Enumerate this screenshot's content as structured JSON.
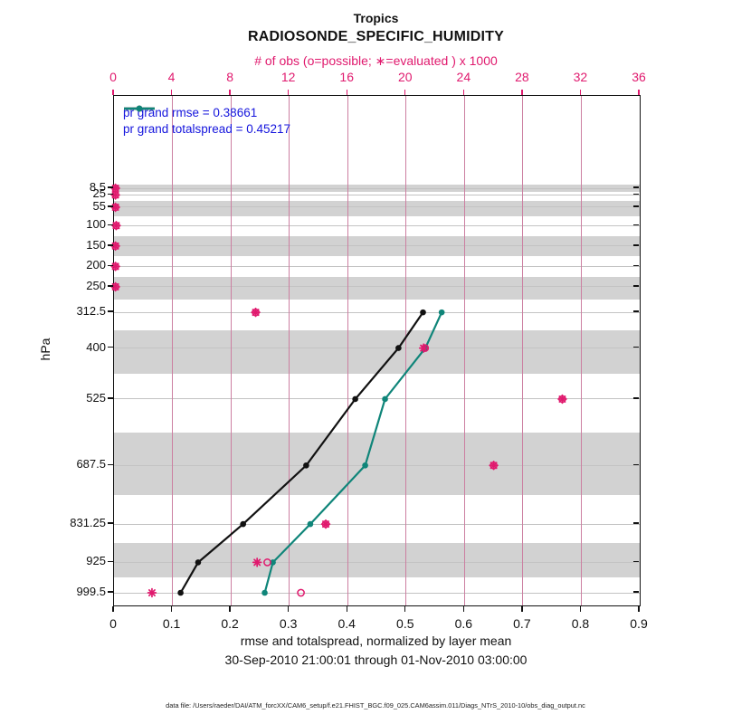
{
  "header": {
    "title": "Tropics",
    "subtitle": "RADIOSONDE_SPECIFIC_HUMIDITY",
    "obs_axis_label": "# of obs (o=possible; ∗=evaluated ) x 1000"
  },
  "footer": {
    "xlabel": "rmse and totalspread, normalized by layer mean",
    "date_range": "30-Sep-2010 21:00:01 through 01-Nov-2010 03:00:00",
    "data_file": "data file: /Users/raeder/DAI/ATM_forcXX/CAM6_setup/f.e21.FHIST_BGC.f09_025.CAM6assim.011/Diags_NTrS_2010-10/obs_diag_output.nc"
  },
  "colors": {
    "accent_pink": "#E01A6E",
    "v_grid_pink": "#CC7FA1",
    "h_grid_gray": "#C3C3C3",
    "band_gray": "#D2D2D2",
    "series_black": "#111111",
    "series_teal": "#0F8579",
    "legend_text_blue": "#1515DD"
  },
  "chart_data": {
    "type": "line",
    "orientation": "vertical-profile",
    "title": "Tropics",
    "subtitle": "RADIOSONDE_SPECIFIC_HUMIDITY",
    "ylabel": "hPa",
    "grid": true,
    "legend_position": "top-left",
    "y_axis": {
      "scale": "linear-pressure",
      "levels_hpa": [
        8.5,
        25,
        55,
        100,
        150,
        200,
        250,
        312.5,
        400,
        525,
        687.5,
        831.25,
        925,
        999.5
      ]
    },
    "x_axis": {
      "label": "rmse and totalspread, normalized by layer mean",
      "min": 0,
      "max": 0.9,
      "ticks": [
        0,
        0.1,
        0.2,
        0.3,
        0.4,
        0.5,
        0.6,
        0.7,
        0.8,
        0.9
      ]
    },
    "top_axis": {
      "label": "# of obs (o=possible; ∗=evaluated ) x 1000",
      "min": 0,
      "max": 36,
      "ticks": [
        0,
        4,
        8,
        12,
        16,
        20,
        24,
        28,
        32,
        36
      ]
    },
    "series": [
      {
        "name": "pr grand rmse = 0.38661",
        "color": "#111111",
        "levels_hpa": [
          312.5,
          400,
          525,
          687.5,
          831.25,
          925,
          999.5
        ],
        "values": [
          0.529,
          0.487,
          0.413,
          0.329,
          0.221,
          0.144,
          0.114
        ]
      },
      {
        "name": "pr grand totalspread = 0.45217",
        "color": "#0F8579",
        "levels_hpa": [
          312.5,
          400,
          525,
          687.5,
          831.25,
          925,
          999.5
        ],
        "values": [
          0.561,
          0.533,
          0.464,
          0.43,
          0.336,
          0.272,
          0.258
        ]
      }
    ],
    "obs_counts_thousands": {
      "levels_hpa": [
        8.5,
        25,
        55,
        100,
        150,
        200,
        250,
        312.5,
        400,
        525,
        687.5,
        831.25,
        925,
        999.5
      ],
      "evaluated": [
        0.1,
        0.1,
        0.1,
        0.15,
        0.1,
        0.1,
        0.1,
        9.7,
        21.2,
        30.7,
        26.0,
        14.5,
        9.8,
        2.6
      ],
      "possible": [
        0.1,
        0.1,
        0.1,
        0.15,
        0.1,
        0.1,
        0.1,
        9.7,
        21.3,
        30.7,
        26.0,
        14.5,
        10.5,
        12.8
      ]
    },
    "shaded_layers_hpa": [
      [
        0,
        16.75
      ],
      [
        40,
        77.5
      ],
      [
        125,
        175
      ],
      [
        225,
        281.25
      ],
      [
        356.25,
        462.5
      ],
      [
        606.25,
        759.375
      ],
      [
        878.125,
        962.25
      ]
    ]
  }
}
